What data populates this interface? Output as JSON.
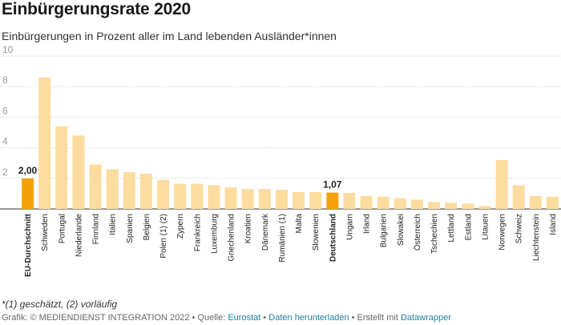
{
  "header": {
    "title": "Einbürgerungsrate 2020",
    "subtitle": "Einbürgerungen in Prozent aller im Land lebenden Ausländer*innen"
  },
  "footer": {
    "footnote": "*(1) geschätzt, (2) vorläufig",
    "grafik": "Grafik: © MEDIENDIENST INTEGRATION 2022 • Quelle: ",
    "source_link": "Eurostat",
    "sep1": " • ",
    "download_link": "Daten herunterladen",
    "sep2": " • Erstellt mit ",
    "tool_link": "Datawrapper"
  },
  "colors": {
    "bar": "#fddc9f",
    "highlight": "#f5a20a",
    "grid": "#d9d9d9",
    "axis_text": "#999999",
    "label_text": "#222222",
    "link": "#1d81a2"
  },
  "chart_data": {
    "type": "bar",
    "title": "Einbürgerungsrate 2020",
    "ylim": [
      0,
      10
    ],
    "yticks": [
      2,
      4,
      6,
      8,
      10
    ],
    "grid": true,
    "categories": [
      "EU-Durchschnitt",
      "Schweden",
      "Portugal",
      "Niederlande",
      "Finnland",
      "Italien",
      "Spanien",
      "Belgien",
      "Polen (1) (2)",
      "Zypern",
      "Frankreich",
      "Luxemburg",
      "Griechenland",
      "Kroatien",
      "Dänemark",
      "Rumänien (1)",
      "Malta",
      "Slowenien",
      "Deutschland",
      "Ungarn",
      "Irland",
      "Bulgarien",
      "Slowakei",
      "Österreich",
      "Tschechien",
      "Lettland",
      "Estland",
      "Litauen",
      "Norwegen",
      "Schweiz",
      "Liechtenstein",
      "Island"
    ],
    "values": [
      2.0,
      8.6,
      5.4,
      4.8,
      2.9,
      2.6,
      2.4,
      2.3,
      1.9,
      1.65,
      1.65,
      1.55,
      1.4,
      1.3,
      1.3,
      1.25,
      1.1,
      1.1,
      1.07,
      1.05,
      0.85,
      0.8,
      0.7,
      0.6,
      0.45,
      0.4,
      0.35,
      0.2,
      3.2,
      1.55,
      0.85,
      0.8
    ],
    "highlighted": [
      "EU-Durchschnitt",
      "Deutschland"
    ],
    "data_labels": [
      {
        "category": "EU-Durchschnitt",
        "text": "2,00"
      },
      {
        "category": "Deutschland",
        "text": "1,07"
      }
    ]
  }
}
